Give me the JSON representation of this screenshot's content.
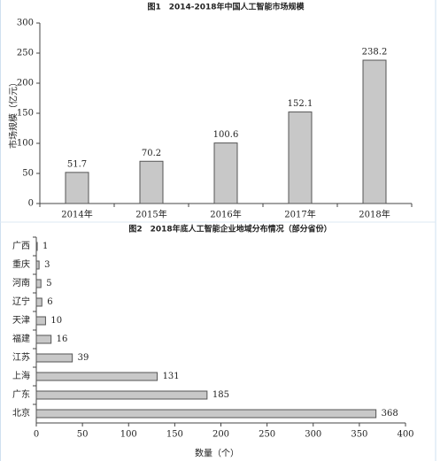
{
  "chart_data": [
    {
      "type": "bar",
      "title": "图1　2014-2018年中国人工智能市场规模",
      "ylabel": "市场规模（亿元）",
      "categories": [
        "2014年",
        "2015年",
        "2016年",
        "2017年",
        "2018年"
      ],
      "values": [
        51.7,
        70.2,
        100.6,
        152.1,
        238.2
      ],
      "color": "#c8c8c8",
      "ylim": [
        0,
        300
      ],
      "yticks": [
        0,
        50,
        100,
        150,
        200,
        250,
        300
      ]
    },
    {
      "type": "barh",
      "title": "图2　2018年底人工智能企业地域分布情况（部分省份）",
      "xlabel": "数量（个）",
      "categories": [
        "广西",
        "重庆",
        "河南",
        "辽宁",
        "天津",
        "福建",
        "江苏",
        "上海",
        "广东",
        "北京"
      ],
      "values": [
        1,
        3,
        5,
        6,
        10,
        16,
        39,
        131,
        185,
        368
      ],
      "color": "#c8c8c8",
      "xlim": [
        0,
        400
      ],
      "xticks": [
        0,
        50,
        100,
        150,
        200,
        250,
        300,
        350,
        400
      ]
    }
  ]
}
